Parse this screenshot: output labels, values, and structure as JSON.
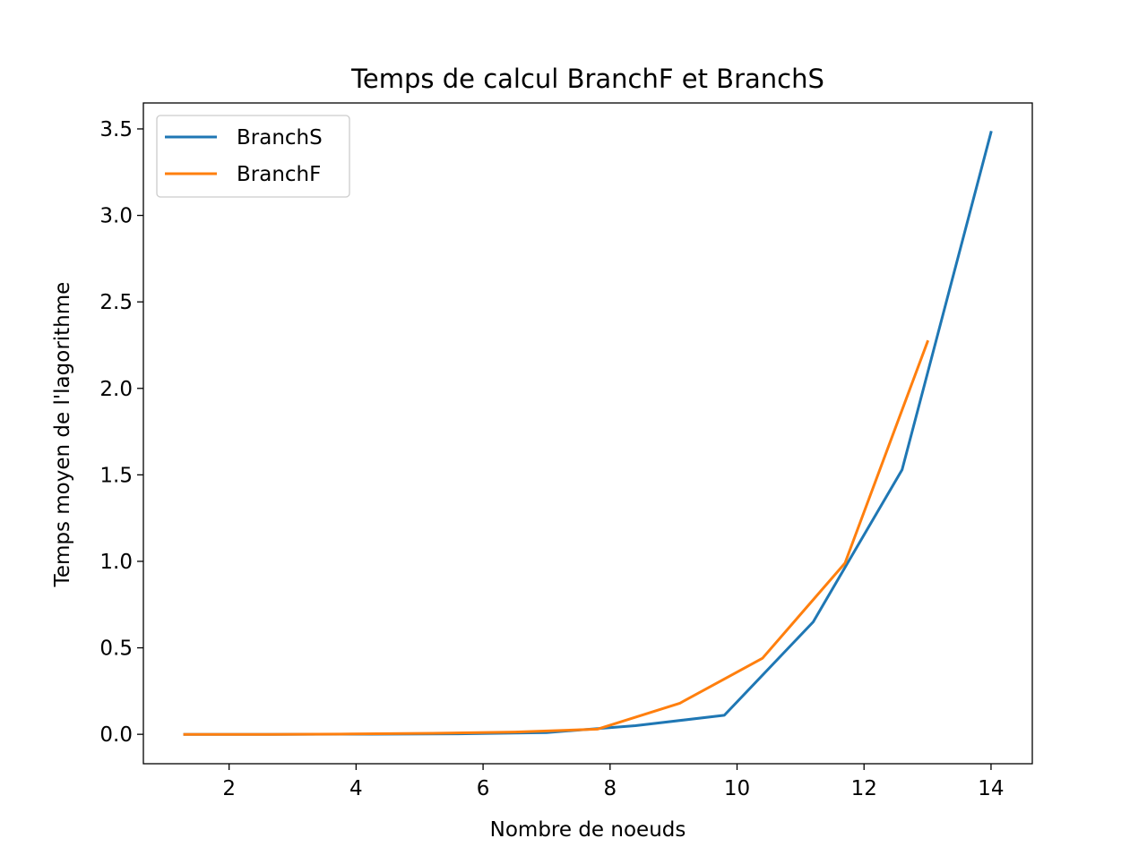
{
  "chart_data": {
    "type": "line",
    "title": "Temps de calcul BranchF et BranchS",
    "xlabel": "Nombre de noeuds",
    "ylabel": "Temps moyen de l'lagorithme",
    "xlim": [
      0.65,
      14.65
    ],
    "ylim": [
      -0.17,
      3.65
    ],
    "xticks": [
      2,
      4,
      6,
      8,
      10,
      12,
      14
    ],
    "xtick_labels": [
      "2",
      "4",
      "6",
      "8",
      "10",
      "12",
      "14"
    ],
    "yticks": [
      0.0,
      0.5,
      1.0,
      1.5,
      2.0,
      2.5,
      3.0,
      3.5
    ],
    "ytick_labels": [
      "0.0",
      "0.5",
      "1.0",
      "1.5",
      "2.0",
      "2.5",
      "3.0",
      "3.5"
    ],
    "grid": false,
    "legend_position": "top-left",
    "series": [
      {
        "name": "BranchS",
        "color": "#1f77b4",
        "x": [
          1.3,
          2.7,
          4.2,
          5.6,
          7.0,
          8.4,
          9.8,
          11.2,
          12.6,
          14.0
        ],
        "y": [
          0.0,
          0.0,
          0.001,
          0.003,
          0.01,
          0.05,
          0.11,
          0.65,
          1.53,
          3.48
        ]
      },
      {
        "name": "BranchF",
        "color": "#ff7f0e",
        "x": [
          1.3,
          2.6,
          3.9,
          5.2,
          6.5,
          7.8,
          9.1,
          10.4,
          11.7,
          13.0
        ],
        "y": [
          0.0,
          0.0,
          0.002,
          0.006,
          0.013,
          0.03,
          0.18,
          0.44,
          0.99,
          2.27
        ]
      }
    ]
  }
}
